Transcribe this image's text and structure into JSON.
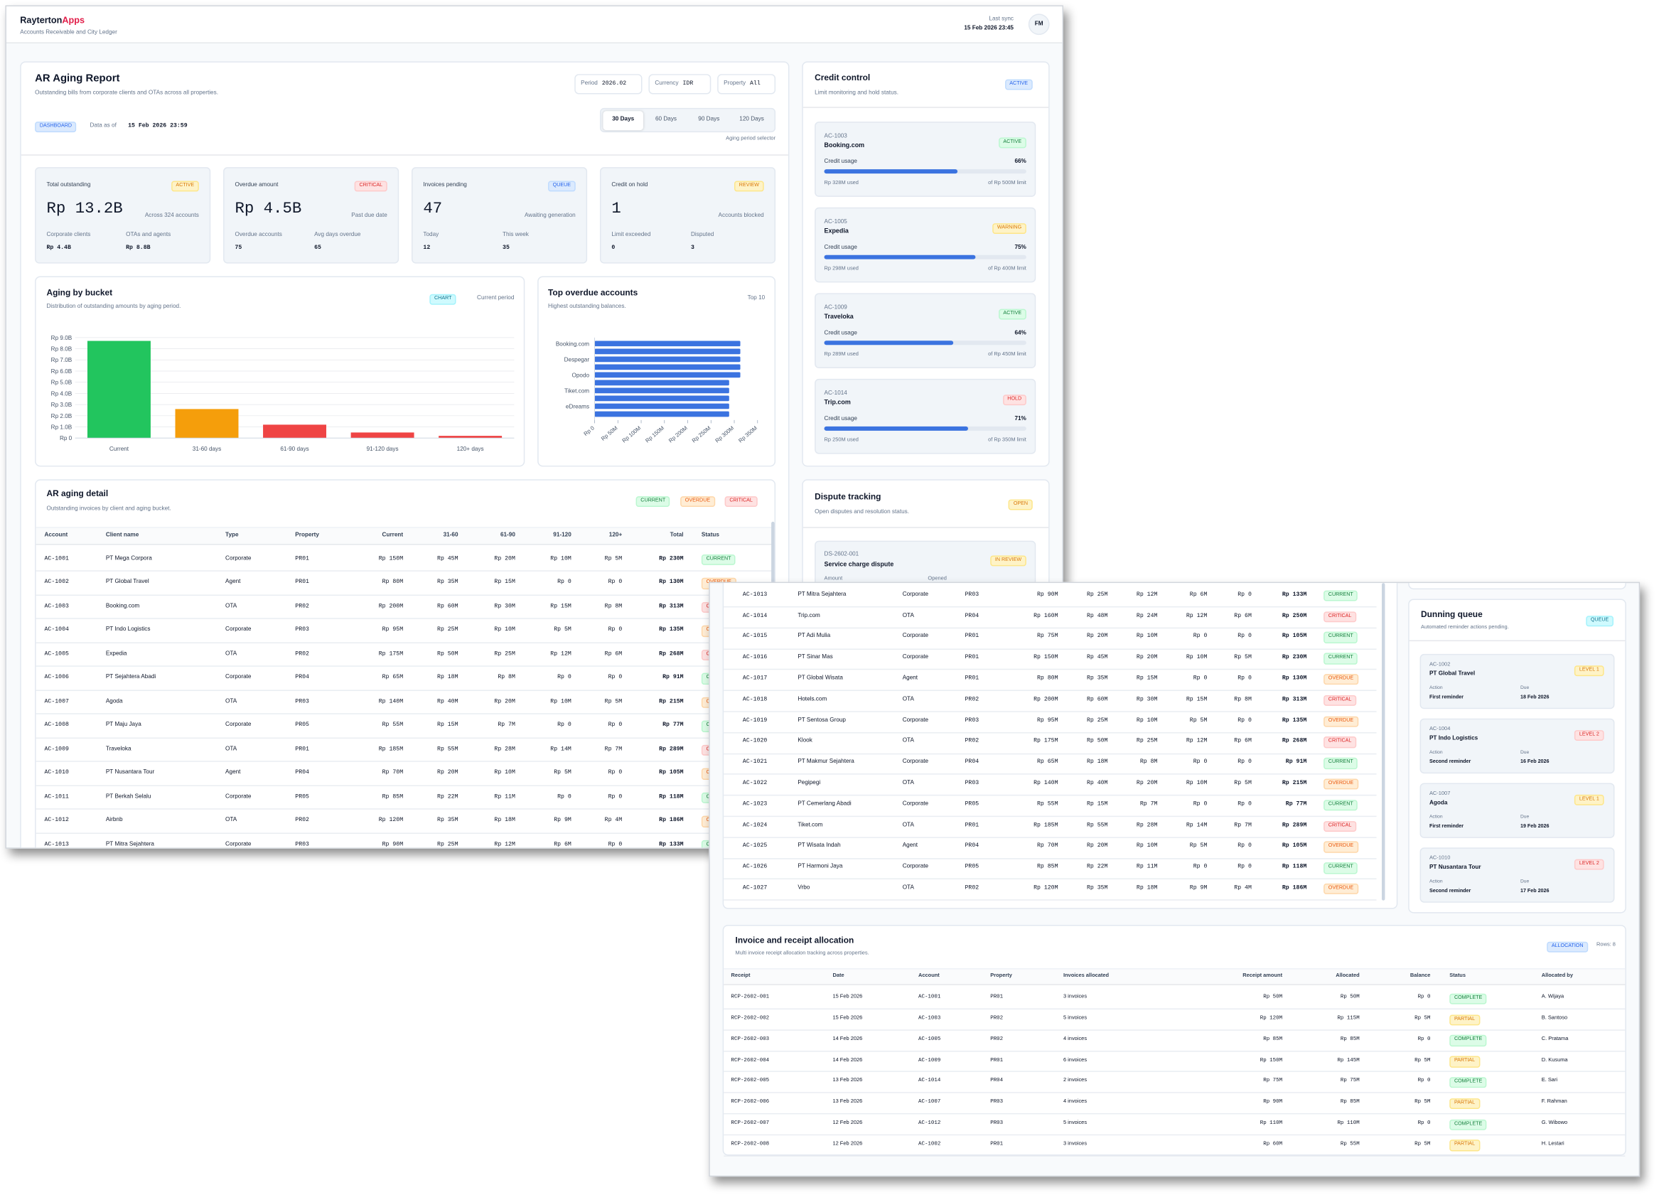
{
  "header": {
    "brand": "Rayterton",
    "brand_accent": "Apps",
    "subtitle": "Accounts Receivable and City Ledger",
    "sync_label": "Last sync",
    "sync_time": "15 Feb 2026 23:45",
    "avatar": "FM"
  },
  "report": {
    "title": "AR Aging Report",
    "subtitle": "Outstanding bills from corporate clients and OTAs across all properties.",
    "filters": [
      {
        "label": "Period",
        "value": "2026.02"
      },
      {
        "label": "Currency",
        "value": "IDR"
      },
      {
        "label": "Property",
        "value": "All"
      }
    ],
    "badge": "DASHBOARD",
    "as_of_label": "Data as of",
    "as_of": "15 Feb 2026 23:59",
    "tabs": [
      "30 Days",
      "60 Days",
      "90 Days",
      "120 Days"
    ],
    "tabs_caption": "Aging period selector",
    "kpis": [
      {
        "label": "Total outstanding",
        "badge": "ACTIVE",
        "value": "Rp 13.2B",
        "note": "Across 324 accounts",
        "stats": [
          {
            "label": "Corporate clients",
            "value": "Rp 4.4B"
          },
          {
            "label": "OTAs and agents",
            "value": "Rp 8.8B"
          }
        ]
      },
      {
        "label": "Overdue amount",
        "badge": "CRITICAL",
        "value": "Rp 4.5B",
        "note": "Past due date",
        "stats": [
          {
            "label": "Overdue accounts",
            "value": "75"
          },
          {
            "label": "Avg days overdue",
            "value": "65"
          }
        ]
      },
      {
        "label": "Invoices pending",
        "badge": "QUEUE",
        "value": "47",
        "note": "Awaiting generation",
        "stats": [
          {
            "label": "Today",
            "value": "12"
          },
          {
            "label": "This week",
            "value": "35"
          }
        ]
      },
      {
        "label": "Credit on hold",
        "badge": "REVIEW",
        "value": "1",
        "note": "Accounts blocked",
        "stats": [
          {
            "label": "Limit exceeded",
            "value": "0"
          },
          {
            "label": "Disputed",
            "value": "3"
          }
        ]
      }
    ]
  },
  "chart_data": [
    {
      "type": "bar",
      "title": "Aging by bucket",
      "subtitle": "Distribution of outstanding amounts by aging period.",
      "badge": "CHART",
      "note": "Current period",
      "categories": [
        "Current",
        "31-60 days",
        "61-90 days",
        "91-120 days",
        "120+ days"
      ],
      "values": [
        8.7,
        2.6,
        1.2,
        0.5,
        0.2
      ],
      "colors": [
        "#22c55e",
        "#f59e0b",
        "#ef4444",
        "#ef4444",
        "#ef4444"
      ],
      "ylim": [
        0,
        9
      ],
      "yticks": [
        {
          "value": 0,
          "label": "Rp 0"
        },
        {
          "value": 1,
          "label": "Rp 1.0B"
        },
        {
          "value": 2,
          "label": "Rp 2.0B"
        },
        {
          "value": 3,
          "label": "Rp 3.0B"
        },
        {
          "value": 4,
          "label": "Rp 4.0B"
        },
        {
          "value": 5,
          "label": "Rp 5.0B"
        },
        {
          "value": 6,
          "label": "Rp 6.0B"
        },
        {
          "value": 7,
          "label": "Rp 7.0B"
        },
        {
          "value": 8,
          "label": "Rp 8.0B"
        },
        {
          "value": 9,
          "label": "Rp 9.0B"
        }
      ],
      "grid": true
    },
    {
      "type": "hbar",
      "title": "Top overdue accounts",
      "subtitle": "Highest outstanding balances.",
      "note": "Top 10",
      "categories": [
        "Booking.com",
        null,
        "Despegar",
        null,
        "Opodo",
        null,
        "Tiket.com",
        null,
        "eDreams",
        null
      ],
      "values": [
        313,
        313,
        313,
        313,
        313,
        289,
        289,
        289,
        289,
        289
      ],
      "color": "#3b73e0",
      "xlim": [
        0,
        350
      ],
      "xticks": [
        {
          "value": 0,
          "label": "Rp 0"
        },
        {
          "value": 50,
          "label": "Rp 50M"
        },
        {
          "value": 100,
          "label": "Rp 100M"
        },
        {
          "value": 150,
          "label": "Rp 150M"
        },
        {
          "value": 200,
          "label": "Rp 200M"
        },
        {
          "value": 250,
          "label": "Rp 250M"
        },
        {
          "value": 300,
          "label": "Rp 300M"
        },
        {
          "value": 350,
          "label": "Rp 350M"
        }
      ],
      "grid": false
    }
  ],
  "aging_detail": {
    "title": "AR aging detail",
    "subtitle": "Outstanding invoices by client and aging bucket.",
    "legend": [
      "CURRENT",
      "OVERDUE",
      "CRITICAL"
    ],
    "columns": [
      "Account",
      "Client name",
      "Type",
      "Property",
      "Current",
      "31-60",
      "61-90",
      "91-120",
      "120+",
      "Total",
      "Status"
    ],
    "rows": [
      [
        "AC-1001",
        "PT Mega Corpora",
        "Corporate",
        "PR01",
        "Rp 150M",
        "Rp 45M",
        "Rp 20M",
        "Rp 10M",
        "Rp 5M",
        "Rp 230M",
        "CURRENT"
      ],
      [
        "AC-1002",
        "PT Global Travel",
        "Agent",
        "PR01",
        "Rp 80M",
        "Rp 35M",
        "Rp 15M",
        "Rp 0",
        "Rp 0",
        "Rp 130M",
        "OVERDUE"
      ],
      [
        "AC-1003",
        "Booking.com",
        "OTA",
        "PR02",
        "Rp 200M",
        "Rp 60M",
        "Rp 30M",
        "Rp 15M",
        "Rp 8M",
        "Rp 313M",
        "CRITICAL"
      ],
      [
        "AC-1004",
        "PT Indo Logistics",
        "Corporate",
        "PR03",
        "Rp 95M",
        "Rp 25M",
        "Rp 10M",
        "Rp 5M",
        "Rp 0",
        "Rp 135M",
        "OVERDUE"
      ],
      [
        "AC-1005",
        "Expedia",
        "OTA",
        "PR02",
        "Rp 175M",
        "Rp 50M",
        "Rp 25M",
        "Rp 12M",
        "Rp 6M",
        "Rp 268M",
        "CRITICAL"
      ],
      [
        "AC-1006",
        "PT Sejahtera Abadi",
        "Corporate",
        "PR04",
        "Rp 65M",
        "Rp 18M",
        "Rp 8M",
        "Rp 0",
        "Rp 0",
        "Rp 91M",
        "CURRENT"
      ],
      [
        "AC-1007",
        "Agoda",
        "OTA",
        "PR03",
        "Rp 140M",
        "Rp 40M",
        "Rp 20M",
        "Rp 10M",
        "Rp 5M",
        "Rp 215M",
        "OVERDUE"
      ],
      [
        "AC-1008",
        "PT Maju Jaya",
        "Corporate",
        "PR05",
        "Rp 55M",
        "Rp 15M",
        "Rp 7M",
        "Rp 0",
        "Rp 0",
        "Rp 77M",
        "CURRENT"
      ],
      [
        "AC-1009",
        "Traveloka",
        "OTA",
        "PR01",
        "Rp 185M",
        "Rp 55M",
        "Rp 28M",
        "Rp 14M",
        "Rp 7M",
        "Rp 289M",
        "CRITICAL"
      ],
      [
        "AC-1010",
        "PT Nusantara Tour",
        "Agent",
        "PR04",
        "Rp 70M",
        "Rp 20M",
        "Rp 10M",
        "Rp 5M",
        "Rp 0",
        "Rp 105M",
        "OVERDUE"
      ],
      [
        "AC-1011",
        "PT Berkah Selalu",
        "Corporate",
        "PR05",
        "Rp 85M",
        "Rp 22M",
        "Rp 11M",
        "Rp 0",
        "Rp 0",
        "Rp 118M",
        "CURRENT"
      ],
      [
        "AC-1012",
        "Airbnb",
        "OTA",
        "PR02",
        "Rp 120M",
        "Rp 35M",
        "Rp 18M",
        "Rp 9M",
        "Rp 4M",
        "Rp 186M",
        "OVERDUE"
      ],
      [
        "AC-1013",
        "PT Mitra Sejahtera",
        "Corporate",
        "PR03",
        "Rp 90M",
        "Rp 25M",
        "Rp 12M",
        "Rp 6M",
        "Rp 0",
        "Rp 133M",
        "CURRENT"
      ],
      [
        "AC-1014",
        "Trip.com",
        "OTA",
        "PR04",
        "Rp 160M",
        "Rp 48M",
        "Rp 24M",
        "Rp 12M",
        "Rp 6M",
        "Rp 250M",
        "CRITICAL"
      ],
      [
        "AC-1015",
        "PT Adi Mulia",
        "Corporate",
        "PR01",
        "Rp 75M",
        "Rp 20M",
        "Rp 10M",
        "Rp 0",
        "Rp 0",
        "Rp 105M",
        "CURRENT"
      ],
      [
        "AC-1016",
        "PT Sinar Mas",
        "Corporate",
        "PR01",
        "Rp 150M",
        "Rp 45M",
        "Rp 20M",
        "Rp 10M",
        "Rp 5M",
        "Rp 230M",
        "CURRENT"
      ],
      [
        "AC-1017",
        "PT Global Wisata",
        "Agent",
        "PR01",
        "Rp 80M",
        "Rp 35M",
        "Rp 15M",
        "Rp 0",
        "Rp 0",
        "Rp 130M",
        "OVERDUE"
      ],
      [
        "AC-1018",
        "Hotels.com",
        "OTA",
        "PR02",
        "Rp 200M",
        "Rp 60M",
        "Rp 30M",
        "Rp 15M",
        "Rp 8M",
        "Rp 313M",
        "CRITICAL"
      ],
      [
        "AC-1019",
        "PT Sentosa Group",
        "Corporate",
        "PR03",
        "Rp 95M",
        "Rp 25M",
        "Rp 10M",
        "Rp 5M",
        "Rp 0",
        "Rp 135M",
        "OVERDUE"
      ],
      [
        "AC-1020",
        "Klook",
        "OTA",
        "PR02",
        "Rp 175M",
        "Rp 50M",
        "Rp 25M",
        "Rp 12M",
        "Rp 6M",
        "Rp 268M",
        "CRITICAL"
      ],
      [
        "AC-1021",
        "PT Makmur Sejahtera",
        "Corporate",
        "PR04",
        "Rp 65M",
        "Rp 18M",
        "Rp 8M",
        "Rp 0",
        "Rp 0",
        "Rp 91M",
        "CURRENT"
      ],
      [
        "AC-1022",
        "Pegipegi",
        "OTA",
        "PR03",
        "Rp 140M",
        "Rp 40M",
        "Rp 20M",
        "Rp 10M",
        "Rp 5M",
        "Rp 215M",
        "OVERDUE"
      ],
      [
        "AC-1023",
        "PT Cemerlang Abadi",
        "Corporate",
        "PR05",
        "Rp 55M",
        "Rp 15M",
        "Rp 7M",
        "Rp 0",
        "Rp 0",
        "Rp 77M",
        "CURRENT"
      ],
      [
        "AC-1024",
        "Tiket.com",
        "OTA",
        "PR01",
        "Rp 185M",
        "Rp 55M",
        "Rp 28M",
        "Rp 14M",
        "Rp 7M",
        "Rp 289M",
        "CRITICAL"
      ],
      [
        "AC-1025",
        "PT Wisata Indah",
        "Agent",
        "PR04",
        "Rp 70M",
        "Rp 20M",
        "Rp 10M",
        "Rp 5M",
        "Rp 0",
        "Rp 105M",
        "OVERDUE"
      ],
      [
        "AC-1026",
        "PT Harmoni Jaya",
        "Corporate",
        "PR05",
        "Rp 85M",
        "Rp 22M",
        "Rp 11M",
        "Rp 0",
        "Rp 0",
        "Rp 118M",
        "CURRENT"
      ],
      [
        "AC-1027",
        "Vrbo",
        "OTA",
        "PR02",
        "Rp 120M",
        "Rp 35M",
        "Rp 18M",
        "Rp 9M",
        "Rp 4M",
        "Rp 186M",
        "OVERDUE"
      ]
    ]
  },
  "credit_control": {
    "title": "Credit control",
    "subtitle": "Limit monitoring and hold status.",
    "badge": "ACTIVE",
    "usage_label": "Credit usage",
    "accounts": [
      {
        "id": "AC-1003",
        "name": "Booking.com",
        "status": "ACTIVE",
        "usage": 66,
        "usage_text": "66%",
        "used": "Rp 328M used",
        "limit": "of Rp 500M limit"
      },
      {
        "id": "AC-1005",
        "name": "Expedia",
        "status": "WARNING",
        "usage": 75,
        "usage_text": "75%",
        "used": "Rp 298M used",
        "limit": "of Rp 400M limit"
      },
      {
        "id": "AC-1009",
        "name": "Traveloka",
        "status": "ACTIVE",
        "usage": 64,
        "usage_text": "64%",
        "used": "Rp 289M used",
        "limit": "of Rp 450M limit"
      },
      {
        "id": "AC-1014",
        "name": "Trip.com",
        "status": "HOLD",
        "usage": 71,
        "usage_text": "71%",
        "used": "Rp 250M used",
        "limit": "of Rp 350M limit"
      }
    ]
  },
  "dispute": {
    "title": "Dispute tracking",
    "subtitle": "Open disputes and resolution status.",
    "badge": "OPEN",
    "items": [
      {
        "id": "DS-2602-001",
        "name": "Service charge dispute",
        "status": "IN REVIEW",
        "fields": [
          "Amount",
          "Opened"
        ]
      }
    ]
  },
  "dunning": {
    "title": "Dunning queue",
    "subtitle": "Automated reminder actions pending.",
    "badge": "QUEUE",
    "action_label": "Action",
    "due_label": "Due",
    "items": [
      {
        "id": "AC-1002",
        "name": "PT Global Travel",
        "level": "LEVEL 1",
        "action": "First reminder",
        "due": "18 Feb 2026"
      },
      {
        "id": "AC-1004",
        "name": "PT Indo Logistics",
        "level": "LEVEL 2",
        "action": "Second reminder",
        "due": "16 Feb 2026"
      },
      {
        "id": "AC-1007",
        "name": "Agoda",
        "level": "LEVEL 1",
        "action": "First reminder",
        "due": "19 Feb 2026"
      },
      {
        "id": "AC-1010",
        "name": "PT Nusantara Tour",
        "level": "LEVEL 2",
        "action": "Second reminder",
        "due": "17 Feb 2026"
      }
    ]
  },
  "allocation": {
    "title": "Invoice and receipt allocation",
    "subtitle": "Multi invoice receipt allocation tracking across properties.",
    "badge": "ALLOCATION",
    "rows_label": "Rows: 8",
    "columns": [
      "Receipt",
      "Date",
      "Account",
      "Property",
      "Invoices allocated",
      "Receipt amount",
      "Allocated",
      "Balance",
      "Status",
      "Allocated by"
    ],
    "rows": [
      [
        "RCP-2602-001",
        "15 Feb 2026",
        "AC-1001",
        "PR01",
        "3 invoices",
        "Rp 50M",
        "Rp 50M",
        "Rp 0",
        "COMPLETE",
        "A. Wijaya"
      ],
      [
        "RCP-2602-002",
        "15 Feb 2026",
        "AC-1003",
        "PR02",
        "5 invoices",
        "Rp 120M",
        "Rp 115M",
        "Rp 5M",
        "PARTIAL",
        "B. Santoso"
      ],
      [
        "RCP-2602-003",
        "14 Feb 2026",
        "AC-1005",
        "PR02",
        "4 invoices",
        "Rp 85M",
        "Rp 85M",
        "Rp 0",
        "COMPLETE",
        "C. Pratama"
      ],
      [
        "RCP-2602-004",
        "14 Feb 2026",
        "AC-1009",
        "PR01",
        "6 invoices",
        "Rp 150M",
        "Rp 145M",
        "Rp 5M",
        "PARTIAL",
        "D. Kusuma"
      ],
      [
        "RCP-2602-005",
        "13 Feb 2026",
        "AC-1014",
        "PR04",
        "2 invoices",
        "Rp 75M",
        "Rp 75M",
        "Rp 0",
        "COMPLETE",
        "E. Sari"
      ],
      [
        "RCP-2602-006",
        "13 Feb 2026",
        "AC-1007",
        "PR03",
        "4 invoices",
        "Rp 90M",
        "Rp 85M",
        "Rp 5M",
        "PARTIAL",
        "F. Rahman"
      ],
      [
        "RCP-2602-007",
        "12 Feb 2026",
        "AC-1012",
        "PR03",
        "5 invoices",
        "Rp 110M",
        "Rp 110M",
        "Rp 0",
        "COMPLETE",
        "G. Wibowo"
      ],
      [
        "RCP-2602-008",
        "12 Feb 2026",
        "AC-1002",
        "PR01",
        "3 invoices",
        "Rp 60M",
        "Rp 55M",
        "Rp 5M",
        "PARTIAL",
        "H. Lestari"
      ]
    ]
  }
}
